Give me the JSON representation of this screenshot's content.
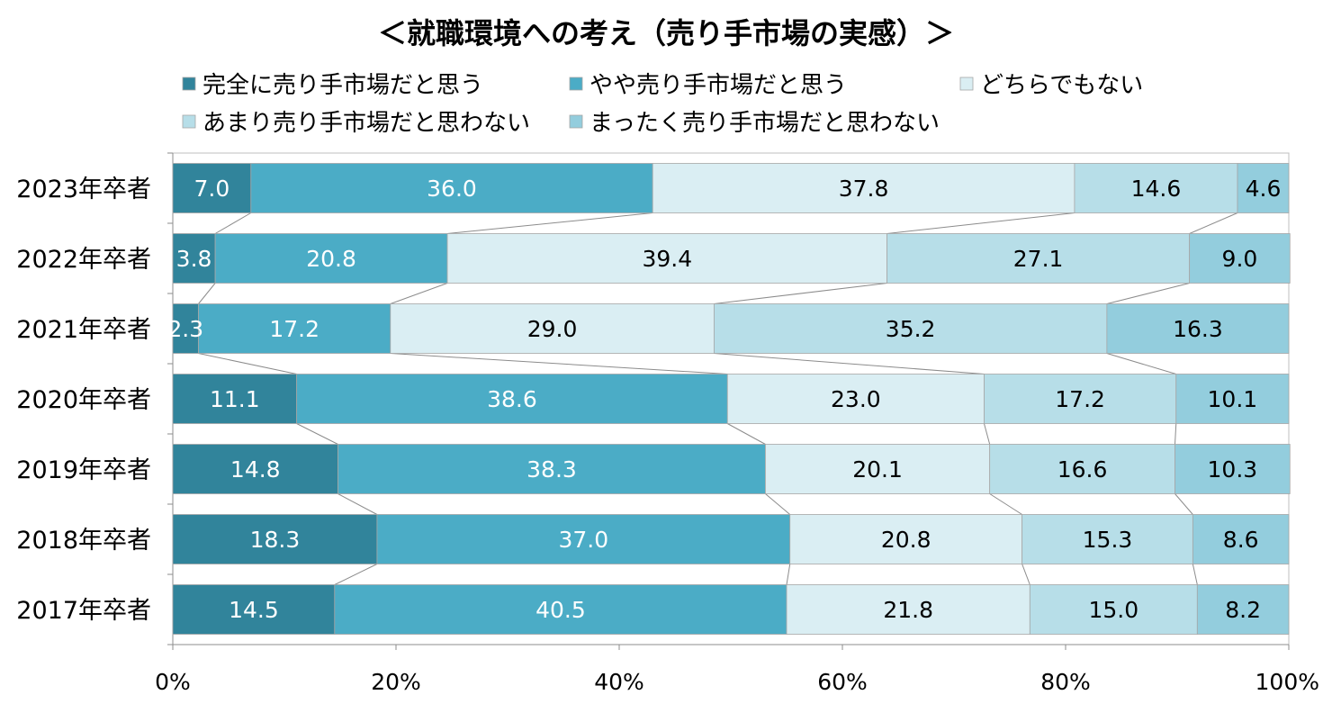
{
  "chart_data": {
    "type": "bar",
    "orientation": "horizontal",
    "stacked": "100%",
    "title": "＜就職環境への考え（売り手市場の実感）＞",
    "categories": [
      "2023年卒者",
      "2022年卒者",
      "2021年卒者",
      "2020年卒者",
      "2019年卒者",
      "2018年卒者",
      "2017年卒者"
    ],
    "series": [
      {
        "name": "完全に売り手市場だと思う",
        "color": "#31849b",
        "values": [
          7.0,
          3.8,
          2.3,
          11.1,
          14.8,
          18.3,
          14.5
        ]
      },
      {
        "name": "やや売り手市場だと思う",
        "color": "#4bacc6",
        "values": [
          36.0,
          20.8,
          17.2,
          38.6,
          38.3,
          37.0,
          40.5
        ]
      },
      {
        "name": "どちらでもない",
        "color": "#daeef3",
        "values": [
          37.8,
          39.4,
          29.0,
          23.0,
          20.1,
          20.8,
          21.8
        ]
      },
      {
        "name": "あまり売り手市場だと思わない",
        "color": "#b7dee8",
        "values": [
          14.6,
          27.1,
          35.2,
          17.2,
          16.6,
          15.3,
          15.0
        ]
      },
      {
        "name": "まったく売り手市場だと思わない",
        "color": "#93cddd",
        "values": [
          4.6,
          9.0,
          16.3,
          10.1,
          10.3,
          8.6,
          8.2
        ]
      }
    ],
    "value_labels": [
      [
        "7.0",
        "36.0",
        "37.8",
        "14.6",
        "4.6"
      ],
      [
        "3.8",
        "20.8",
        "39.4",
        "27.1",
        "9.0"
      ],
      [
        "2.3",
        "17.2",
        "29.0",
        "35.2",
        "16.3"
      ],
      [
        "11.1",
        "38.6",
        "23.0",
        "17.2",
        "10.1"
      ],
      [
        "14.8",
        "38.3",
        "20.1",
        "16.6",
        "10.3"
      ],
      [
        "18.3",
        "37.0",
        "20.8",
        "15.3",
        "8.6"
      ],
      [
        "14.5",
        "40.5",
        "21.8",
        "15.0",
        "8.2"
      ]
    ],
    "label_colors": [
      "#ffffff",
      "#ffffff",
      "#000000",
      "#000000",
      "#000000"
    ],
    "x_ticks": [
      "0%",
      "20%",
      "40%",
      "60%",
      "80%",
      "100%"
    ],
    "xlim": [
      0,
      100
    ],
    "series_lines": true,
    "legend_position": "top"
  }
}
